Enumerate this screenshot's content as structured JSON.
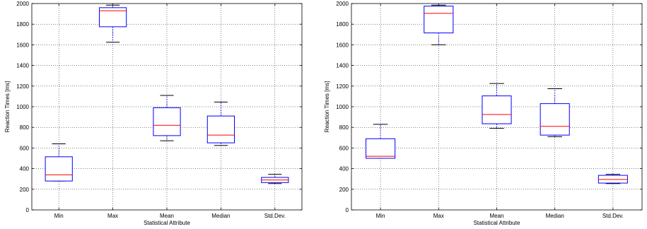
{
  "chart_data": [
    {
      "type": "box",
      "xlabel": "Statistical Attribute",
      "ylabel": "Reaction Times [ms]",
      "ylim": [
        0,
        2000
      ],
      "yticks": [
        0,
        200,
        400,
        600,
        800,
        1000,
        1200,
        1400,
        1600,
        1800,
        2000
      ],
      "grid": true,
      "categories": [
        "Min",
        "Max",
        "Mean",
        "Median",
        "Std.Dev."
      ],
      "boxes": [
        {
          "whisker_low": 280,
          "q1": 280,
          "median": 340,
          "q3": 515,
          "whisker_high": 640
        },
        {
          "whisker_low": 1625,
          "q1": 1775,
          "median": 1930,
          "q3": 1960,
          "whisker_high": 1985
        },
        {
          "whisker_low": 670,
          "q1": 720,
          "median": 820,
          "q3": 990,
          "whisker_high": 1110
        },
        {
          "whisker_low": 625,
          "q1": 650,
          "median": 725,
          "q3": 910,
          "whisker_high": 1045
        },
        {
          "whisker_low": 255,
          "q1": 265,
          "median": 290,
          "q3": 315,
          "whisker_high": 345
        }
      ],
      "box_color": "#0000ff",
      "median_color": "#ff0000"
    },
    {
      "type": "box",
      "xlabel": "Statistical Attribute",
      "ylabel": "Reaction Times [ms]",
      "ylim": [
        0,
        2000
      ],
      "yticks": [
        0,
        200,
        400,
        600,
        800,
        1000,
        1200,
        1400,
        1600,
        1800,
        2000
      ],
      "grid": true,
      "categories": [
        "Min",
        "Max",
        "Mean",
        "Median",
        "Std.Dev."
      ],
      "boxes": [
        {
          "whisker_low": 500,
          "q1": 500,
          "median": 520,
          "q3": 690,
          "whisker_high": 830
        },
        {
          "whisker_low": 1600,
          "q1": 1715,
          "median": 1905,
          "q3": 1975,
          "whisker_high": 1985
        },
        {
          "whisker_low": 790,
          "q1": 835,
          "median": 925,
          "q3": 1105,
          "whisker_high": 1225
        },
        {
          "whisker_low": 710,
          "q1": 725,
          "median": 810,
          "q3": 1030,
          "whisker_high": 1175
        },
        {
          "whisker_low": 255,
          "q1": 260,
          "median": 295,
          "q3": 335,
          "whisker_high": 345
        }
      ],
      "box_color": "#0000ff",
      "median_color": "#ff0000"
    }
  ]
}
